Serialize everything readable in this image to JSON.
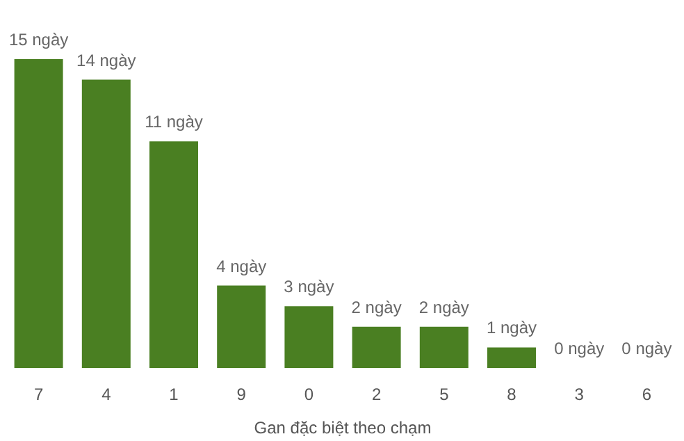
{
  "chart_data": {
    "type": "bar",
    "xlabel": "Gan đặc biệt theo chạm",
    "categories": [
      "7",
      "4",
      "1",
      "9",
      "0",
      "2",
      "5",
      "8",
      "3",
      "6"
    ],
    "values": [
      15,
      14,
      11,
      4,
      3,
      2,
      2,
      1,
      0,
      0
    ],
    "value_labels": [
      "15 ngày",
      "14 ngày",
      "11 ngày",
      "4 ngày",
      "3 ngày",
      "2 ngày",
      "2 ngày",
      "1 ngày",
      "0 ngày",
      "0 ngày"
    ],
    "color": "#4a7f22"
  }
}
